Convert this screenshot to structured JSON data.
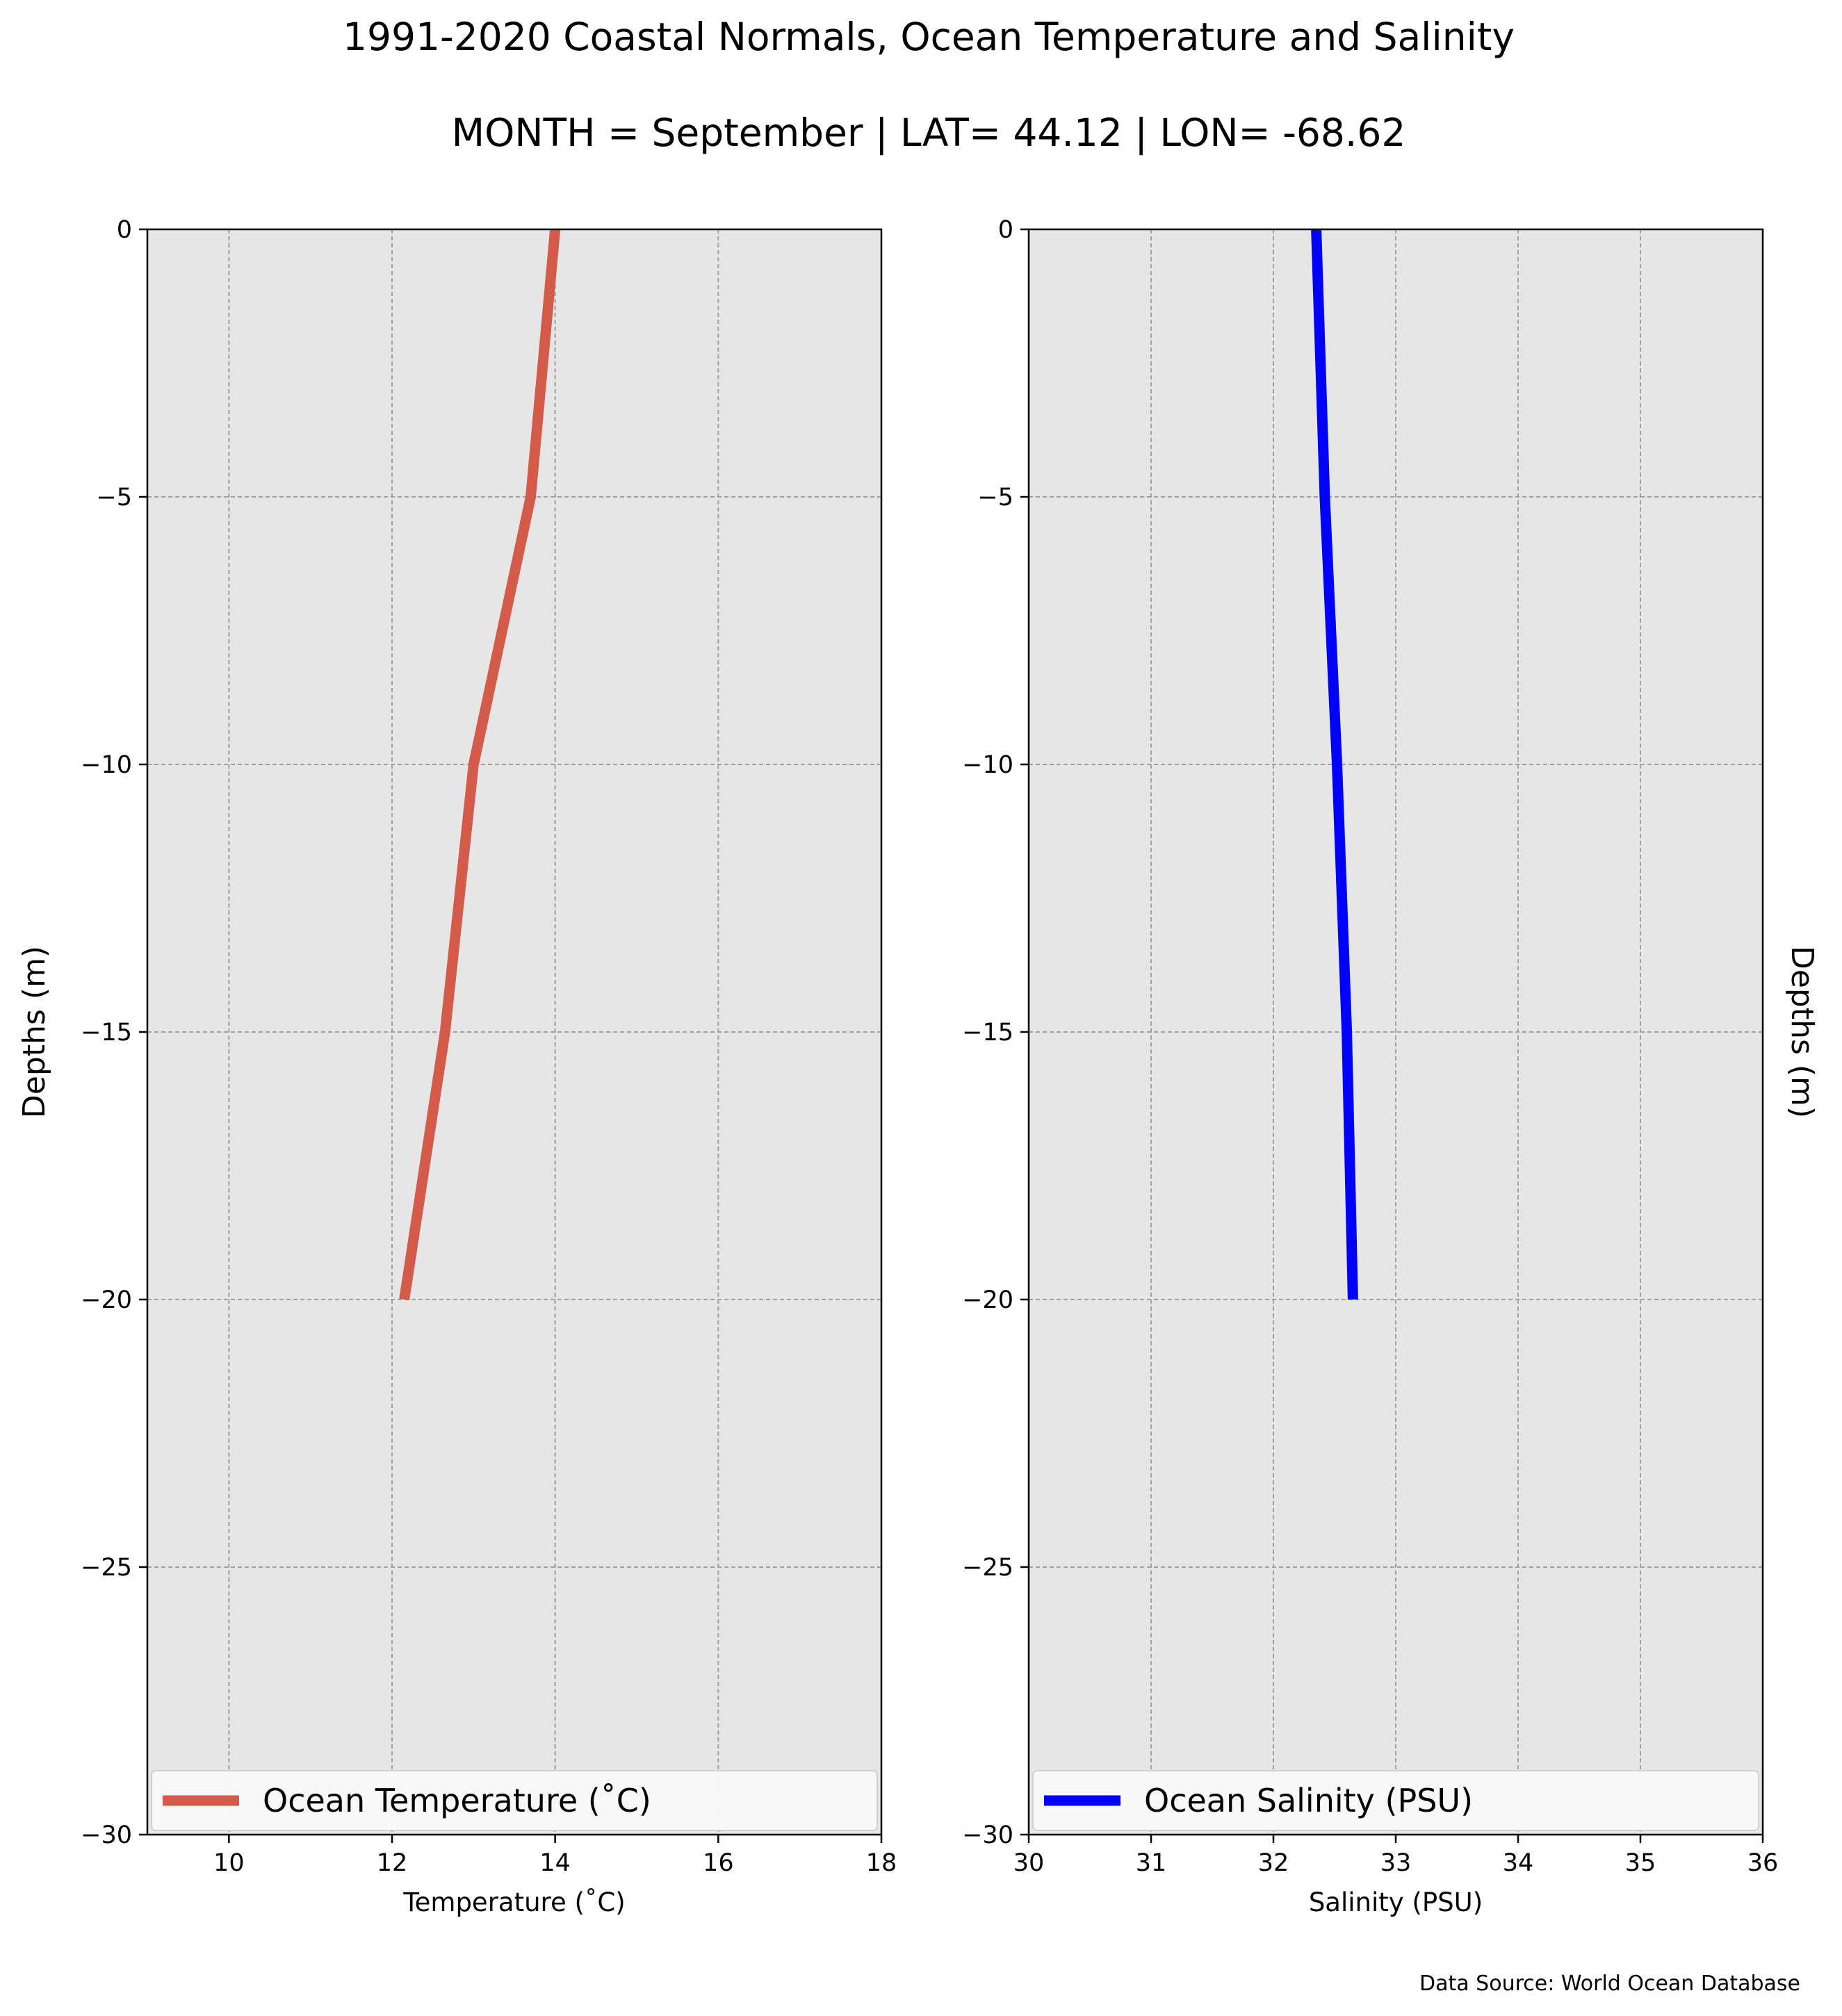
{
  "figure": {
    "title": "1991-2020 Coastal Normals, Ocean Temperature and Salinity",
    "subtitle": "MONTH = September | LAT= 44.12 | LON= -68.62",
    "source": "Data Source: World Ocean Database",
    "background": "#ffffff",
    "plot_background": "#e6e6e6"
  },
  "chart_data": [
    {
      "type": "line",
      "xlabel": "Temperature ($^\\circ$C)",
      "xlabel_display": "Temperature (˚C)",
      "ylabel": "Depths (m)",
      "xlim": [
        9,
        18
      ],
      "ylim": [
        -30,
        0
      ],
      "x_ticks": [
        10,
        12,
        14,
        16,
        18
      ],
      "y_ticks": [
        0,
        -5,
        -10,
        -15,
        -20,
        -25,
        -30
      ],
      "grid": true,
      "legend_position": "lower-center",
      "series": [
        {
          "name": "Ocean Temperature (˚C)",
          "color": "#d45a4a",
          "x": [
            14.0,
            13.7,
            13.0,
            12.65,
            12.15
          ],
          "y": [
            0,
            -5,
            -10,
            -15,
            -20
          ]
        }
      ]
    },
    {
      "type": "line",
      "xlabel": "Salinity (PSU)",
      "ylabel": "Depths (m)",
      "ylabel_position": "right",
      "xlim": [
        30,
        36
      ],
      "ylim": [
        -30,
        0
      ],
      "x_ticks": [
        30,
        31,
        32,
        33,
        34,
        35,
        36
      ],
      "y_ticks": [
        0,
        -5,
        -10,
        -15,
        -20,
        -25,
        -30
      ],
      "grid": true,
      "legend_position": "lower-center",
      "series": [
        {
          "name": "Ocean Salinity (PSU)",
          "color": "#0000ff",
          "x": [
            32.35,
            32.42,
            32.52,
            32.6,
            32.65
          ],
          "y": [
            0,
            -5,
            -10,
            -15,
            -20
          ]
        }
      ]
    }
  ]
}
